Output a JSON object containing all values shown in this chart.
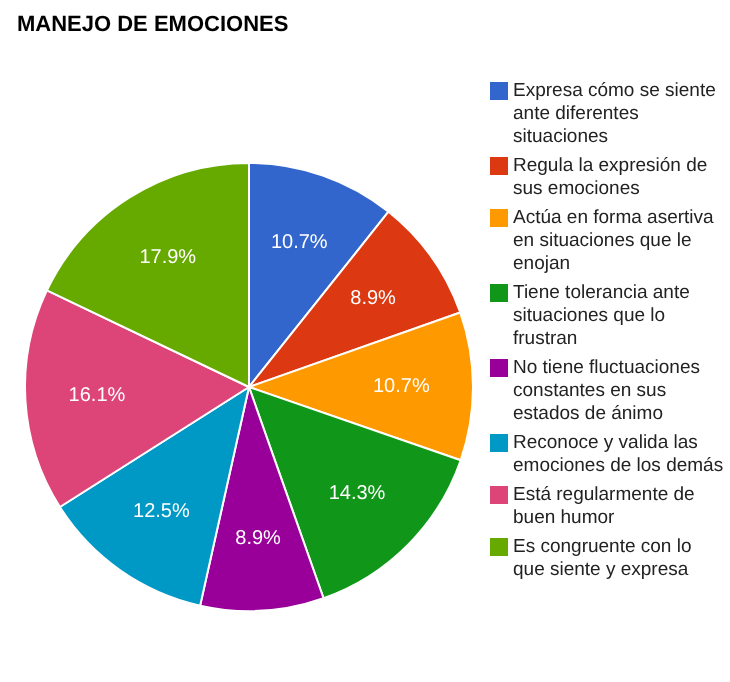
{
  "chart_data": {
    "type": "pie",
    "title": "MANEJO DE EMOCIONES",
    "categories": [
      "Expresa cómo se siente ante diferentes situaciones",
      "Regula la expresión de sus emociones",
      "Actúa en forma asertiva en situaciones que le enojan",
      "Tiene tolerancia ante situaciones que lo frustran",
      "No tiene fluctuaciones constantes en sus estados de ánimo",
      "Reconoce y valida las emociones de los demás",
      "Está regularmente de buen humor",
      "Es congruente con lo que siente y expresa"
    ],
    "values": [
      10.7,
      8.9,
      10.7,
      14.3,
      8.9,
      12.5,
      16.1,
      17.9
    ],
    "colors": [
      "#3366cc",
      "#dc3912",
      "#ff9900",
      "#109618",
      "#990099",
      "#0099c6",
      "#dd4477",
      "#66aa00"
    ],
    "value_labels": [
      "10.7%",
      "8.9%",
      "10.7%",
      "14.3%",
      "8.9%",
      "12.5%",
      "16.1%",
      "17.9%"
    ],
    "legend": "right"
  }
}
